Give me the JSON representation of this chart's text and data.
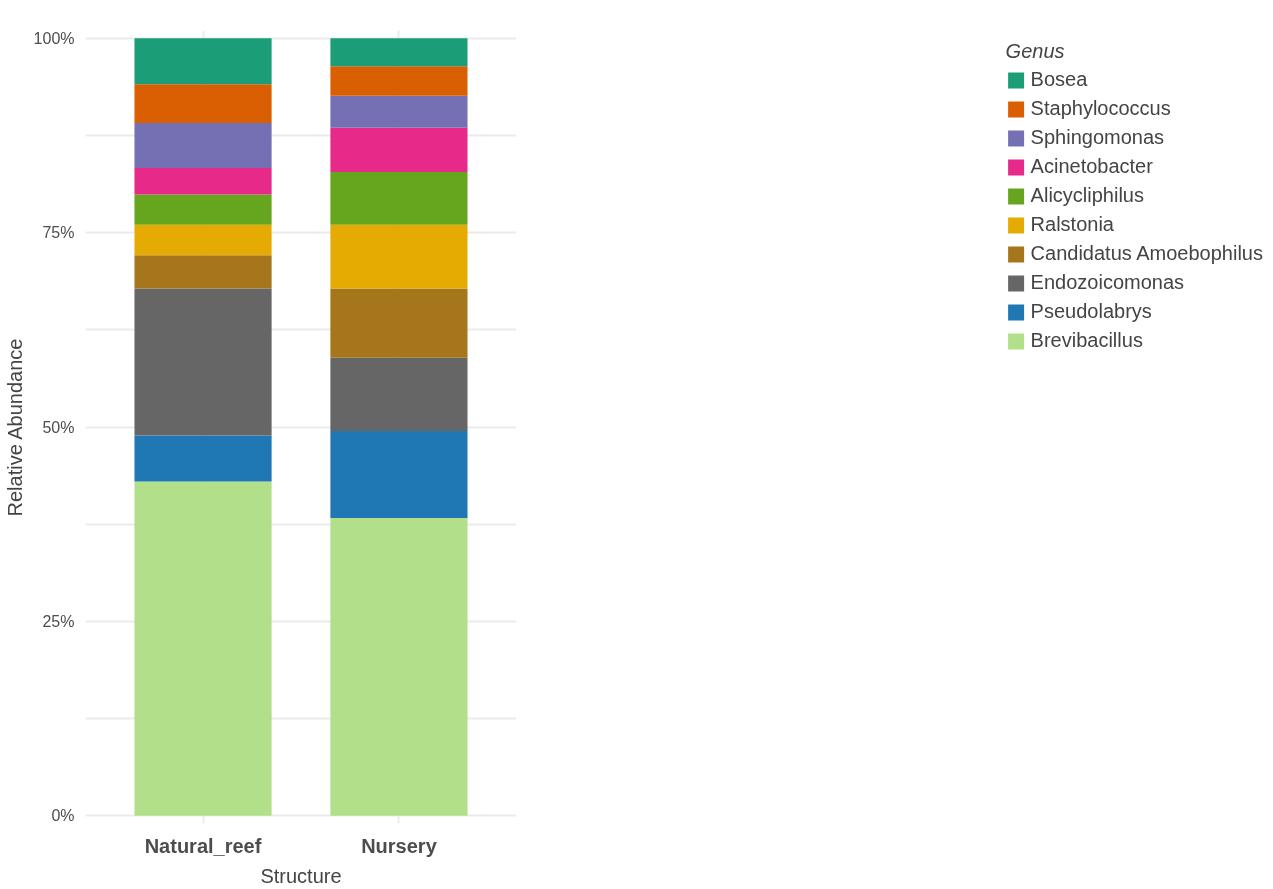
{
  "chart_data": {
    "type": "bar",
    "stacked": true,
    "xlabel": "Structure",
    "ylabel": "Relative Abundance",
    "legend_title": "Genus",
    "legend": "right",
    "categories": [
      "Natural_reef",
      "Nursery"
    ],
    "series": [
      {
        "name": "Brevibacillus",
        "color": "#b2df8a",
        "values": [
          43.0,
          38.3
        ]
      },
      {
        "name": "Pseudolabrys",
        "color": "#1f78b4",
        "values": [
          5.9,
          11.2
        ]
      },
      {
        "name": "Endozoicomonas",
        "color": "#666666",
        "values": [
          18.9,
          9.4
        ]
      },
      {
        "name": "Candidatus Amoebophilus",
        "color": "#a6761d",
        "values": [
          4.3,
          8.9
        ]
      },
      {
        "name": "Ralstonia",
        "color": "#e6ab02",
        "values": [
          3.9,
          8.2
        ]
      },
      {
        "name": "Alicycliphilus",
        "color": "#66a61e",
        "values": [
          3.9,
          6.8
        ]
      },
      {
        "name": "Acinetobacter",
        "color": "#e7298a",
        "values": [
          3.4,
          5.7
        ]
      },
      {
        "name": "Sphingomonas",
        "color": "#7570b3",
        "values": [
          5.8,
          4.1
        ]
      },
      {
        "name": "Staphylococcus",
        "color": "#d95f02",
        "values": [
          5.0,
          3.8
        ]
      },
      {
        "name": "Bosea",
        "color": "#1b9e77",
        "values": [
          5.9,
          3.6
        ]
      }
    ],
    "ylim": [
      -1,
      101
    ],
    "yticks": [
      {
        "value": 0,
        "label": "0%"
      },
      {
        "value": 12.5,
        "label": null
      },
      {
        "value": 25,
        "label": "25%"
      },
      {
        "value": 37.5,
        "label": null
      },
      {
        "value": 50,
        "label": "50%"
      },
      {
        "value": 62.5,
        "label": null
      },
      {
        "value": 75,
        "label": "75%"
      },
      {
        "value": 87.5,
        "label": null
      },
      {
        "value": 100,
        "label": "100%"
      }
    ],
    "grid": true
  }
}
